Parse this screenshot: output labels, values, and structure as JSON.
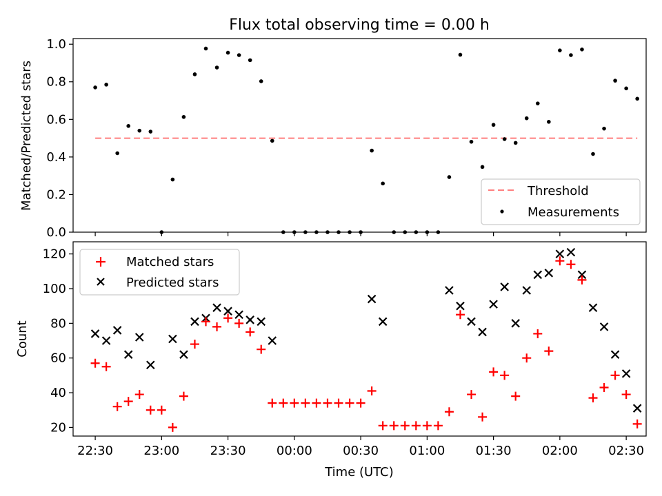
{
  "title": "Flux total observing time = 0.00 h",
  "chart_data": [
    {
      "type": "scatter",
      "ylabel": "Matched/Predicted stars",
      "ylim": [
        0,
        1.03
      ],
      "yticks": [
        0.0,
        0.2,
        0.4,
        0.6,
        0.8,
        1.0
      ],
      "ytick_labels": [
        "0.0",
        "0.2",
        "0.4",
        "0.6",
        "0.8",
        "1.0"
      ],
      "legend_position": "lower-right",
      "threshold": {
        "name": "Threshold",
        "value": 0.5,
        "color": "#ff7f7f"
      },
      "series": [
        {
          "name": "Measurements",
          "color": "#000000",
          "x": [
            "22:30",
            "22:35",
            "22:40",
            "22:45",
            "22:50",
            "22:55",
            "23:00",
            "23:05",
            "23:10",
            "23:15",
            "23:20",
            "23:25",
            "23:30",
            "23:35",
            "23:40",
            "23:45",
            "23:50",
            "23:55",
            "00:00",
            "00:05",
            "00:10",
            "00:15",
            "00:20",
            "00:25",
            "00:30",
            "00:35",
            "00:40",
            "00:45",
            "00:50",
            "00:55",
            "01:00",
            "01:05",
            "01:10",
            "01:15",
            "01:20",
            "01:25",
            "01:30",
            "01:35",
            "01:40",
            "01:45",
            "01:50",
            "01:55",
            "02:00",
            "02:05",
            "02:10",
            "02:15",
            "02:20",
            "02:25",
            "02:30",
            "02:35"
          ],
          "y": [
            0.77,
            0.785,
            0.42,
            0.565,
            0.54,
            0.535,
            0.0,
            0.28,
            0.613,
            0.84,
            0.977,
            0.876,
            0.955,
            0.942,
            0.915,
            0.803,
            0.486,
            0.0,
            0.0,
            0.0,
            0.0,
            0.0,
            0.0,
            0.0,
            0.0,
            0.434,
            0.259,
            0.0,
            0.0,
            0.0,
            0.0,
            0.0,
            0.293,
            0.944,
            0.481,
            0.347,
            0.571,
            0.495,
            0.475,
            0.606,
            0.685,
            0.587,
            0.967,
            0.942,
            0.972,
            0.416,
            0.551,
            0.806,
            0.765,
            0.71
          ]
        }
      ],
      "x_range": [
        "22:20",
        "02:39"
      ]
    },
    {
      "type": "scatter",
      "xlabel": "Time (UTC)",
      "ylabel": "Count",
      "ylim": [
        15,
        127
      ],
      "yticks": [
        20,
        40,
        60,
        80,
        100,
        120
      ],
      "xtick_labels": [
        "22:30",
        "23:00",
        "23:30",
        "00:00",
        "00:30",
        "01:00",
        "01:30",
        "02:00",
        "02:30"
      ],
      "legend_position": "upper-left",
      "x_range": [
        "22:20",
        "02:39"
      ],
      "series": [
        {
          "name": "Matched stars",
          "color": "#ff0000",
          "marker": "+",
          "x": [
            "22:30",
            "22:35",
            "22:40",
            "22:45",
            "22:50",
            "22:55",
            "23:00",
            "23:05",
            "23:10",
            "23:15",
            "23:20",
            "23:25",
            "23:30",
            "23:35",
            "23:40",
            "23:45",
            "23:50",
            "23:55",
            "00:00",
            "00:05",
            "00:10",
            "00:15",
            "00:20",
            "00:25",
            "00:30",
            "00:35",
            "00:40",
            "00:45",
            "00:50",
            "00:55",
            "01:00",
            "01:05",
            "01:10",
            "01:15",
            "01:20",
            "01:25",
            "01:30",
            "01:35",
            "01:40",
            "01:45",
            "01:50",
            "01:55",
            "02:00",
            "02:05",
            "02:10",
            "02:15",
            "02:20",
            "02:25",
            "02:30",
            "02:35"
          ],
          "y": [
            57,
            55,
            32,
            35,
            39,
            30,
            30,
            20,
            38,
            68,
            81,
            78,
            83,
            80,
            75,
            65,
            34,
            34,
            34,
            34,
            34,
            34,
            34,
            34,
            34,
            41,
            21,
            21,
            21,
            21,
            21,
            21,
            29,
            85,
            39,
            26,
            52,
            50,
            38,
            60,
            74,
            64,
            116,
            114,
            105,
            37,
            43,
            50,
            39,
            22
          ]
        },
        {
          "name": "Predicted stars",
          "color": "#000000",
          "marker": "x",
          "x": [
            "22:30",
            "22:35",
            "22:40",
            "22:45",
            "22:50",
            "22:55",
            "23:05",
            "23:10",
            "23:15",
            "23:20",
            "23:25",
            "23:30",
            "23:35",
            "23:40",
            "23:45",
            "23:50",
            "00:35",
            "00:40",
            "01:10",
            "01:15",
            "01:20",
            "01:25",
            "01:30",
            "01:35",
            "01:40",
            "01:45",
            "01:50",
            "01:55",
            "02:00",
            "02:05",
            "02:10",
            "02:15",
            "02:20",
            "02:25",
            "02:30",
            "02:35"
          ],
          "y": [
            74,
            70,
            76,
            62,
            72,
            56,
            71,
            62,
            81,
            83,
            89,
            87,
            85,
            82,
            81,
            70,
            94,
            81,
            99,
            90,
            81,
            75,
            91,
            101,
            80,
            99,
            108,
            109,
            120,
            121,
            108,
            89,
            78,
            62,
            51,
            31
          ]
        }
      ]
    }
  ]
}
